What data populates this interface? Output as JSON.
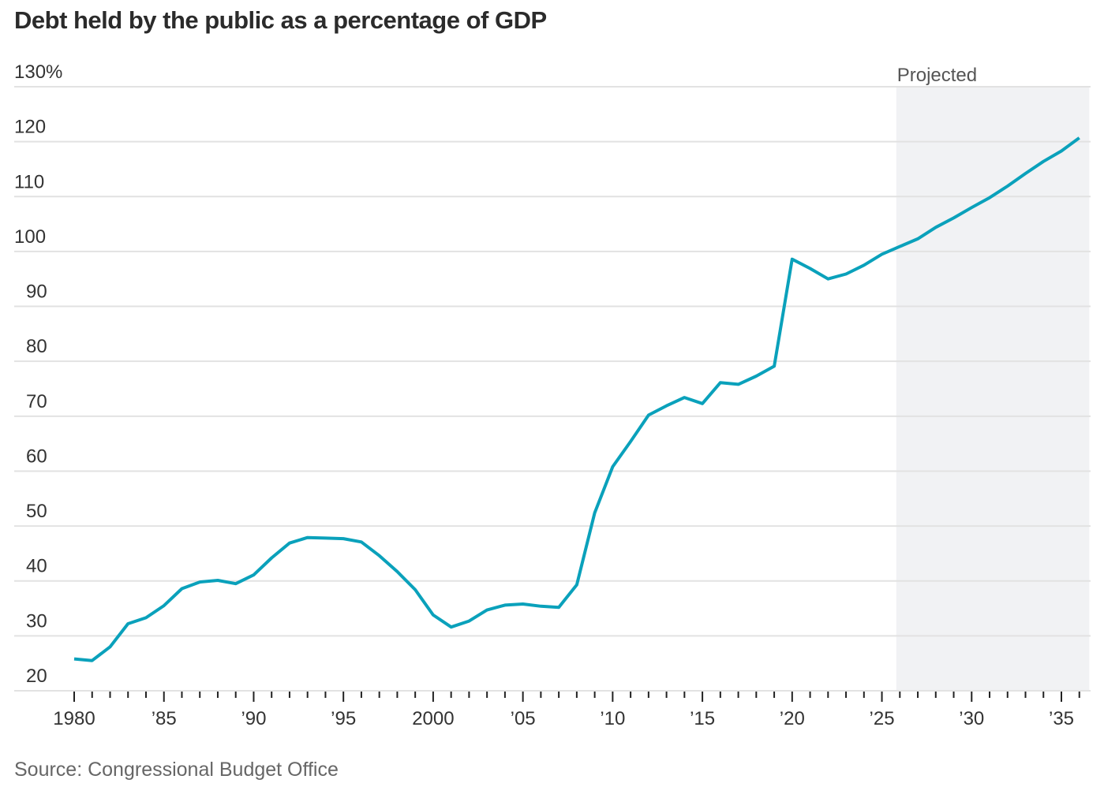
{
  "chart_data": {
    "type": "line",
    "title": "Debt held by the public as a percentage of GDP",
    "xlabel": "",
    "ylabel": "",
    "source": "Source: Congressional Budget Office",
    "ylim": [
      20,
      130
    ],
    "xlim": [
      1980,
      2036
    ],
    "grid": true,
    "y_ticks": [
      {
        "value": 130,
        "label": "130%"
      },
      {
        "value": 120,
        "label": "120"
      },
      {
        "value": 110,
        "label": "110"
      },
      {
        "value": 100,
        "label": "100"
      },
      {
        "value": 90,
        "label": "90"
      },
      {
        "value": 80,
        "label": "80"
      },
      {
        "value": 70,
        "label": "70"
      },
      {
        "value": 60,
        "label": "60"
      },
      {
        "value": 50,
        "label": "50"
      },
      {
        "value": 40,
        "label": "40"
      },
      {
        "value": 30,
        "label": "30"
      },
      {
        "value": 20,
        "label": "20"
      }
    ],
    "x_ticks": [
      {
        "value": 1980,
        "label": "1980"
      },
      {
        "value": 1985,
        "label": "’85"
      },
      {
        "value": 1990,
        "label": "’90"
      },
      {
        "value": 1995,
        "label": "’95"
      },
      {
        "value": 2000,
        "label": "2000"
      },
      {
        "value": 2005,
        "label": "’05"
      },
      {
        "value": 2010,
        "label": "’10"
      },
      {
        "value": 2015,
        "label": "’15"
      },
      {
        "value": 2020,
        "label": "’20"
      },
      {
        "value": 2025,
        "label": "’25"
      },
      {
        "value": 2030,
        "label": "’30"
      },
      {
        "value": 2035,
        "label": "’35"
      }
    ],
    "projected_region": {
      "label": "Projected",
      "start": 2025.8,
      "end": 2036.2
    },
    "series": [
      {
        "name": "Debt held by the public (% of GDP)",
        "color": "#0aa1bb",
        "x": [
          1980,
          1981,
          1982,
          1983,
          1984,
          1985,
          1986,
          1987,
          1988,
          1989,
          1990,
          1991,
          1992,
          1993,
          1994,
          1995,
          1996,
          1997,
          1998,
          1999,
          2000,
          2001,
          2002,
          2003,
          2004,
          2005,
          2006,
          2007,
          2008,
          2009,
          2010,
          2011,
          2012,
          2013,
          2014,
          2015,
          2016,
          2017,
          2018,
          2019,
          2020,
          2021,
          2022,
          2023,
          2024,
          2025,
          2026,
          2027,
          2028,
          2029,
          2030,
          2031,
          2032,
          2033,
          2034,
          2035,
          2036
        ],
        "values": [
          25.8,
          25.5,
          28.0,
          32.2,
          33.3,
          35.5,
          38.6,
          39.8,
          40.1,
          39.5,
          41.1,
          44.2,
          46.9,
          47.9,
          47.8,
          47.7,
          47.1,
          44.6,
          41.7,
          38.4,
          33.8,
          31.6,
          32.7,
          34.7,
          35.6,
          35.8,
          35.4,
          35.2,
          39.3,
          52.4,
          60.8,
          65.4,
          70.2,
          71.9,
          73.4,
          72.3,
          76.1,
          75.8,
          77.3,
          79.1,
          98.6,
          96.9,
          95.0,
          95.9,
          97.5,
          99.5,
          100.9,
          102.3,
          104.4,
          106.1,
          108.0,
          109.8,
          111.9,
          114.2,
          116.4,
          118.3,
          120.7
        ]
      }
    ]
  },
  "colors": {
    "line": "#0aa1bb",
    "projected_band": "#f1f2f4",
    "gridline": "#e2e2e2",
    "title": "#2b2b2b",
    "source": "#666666"
  }
}
